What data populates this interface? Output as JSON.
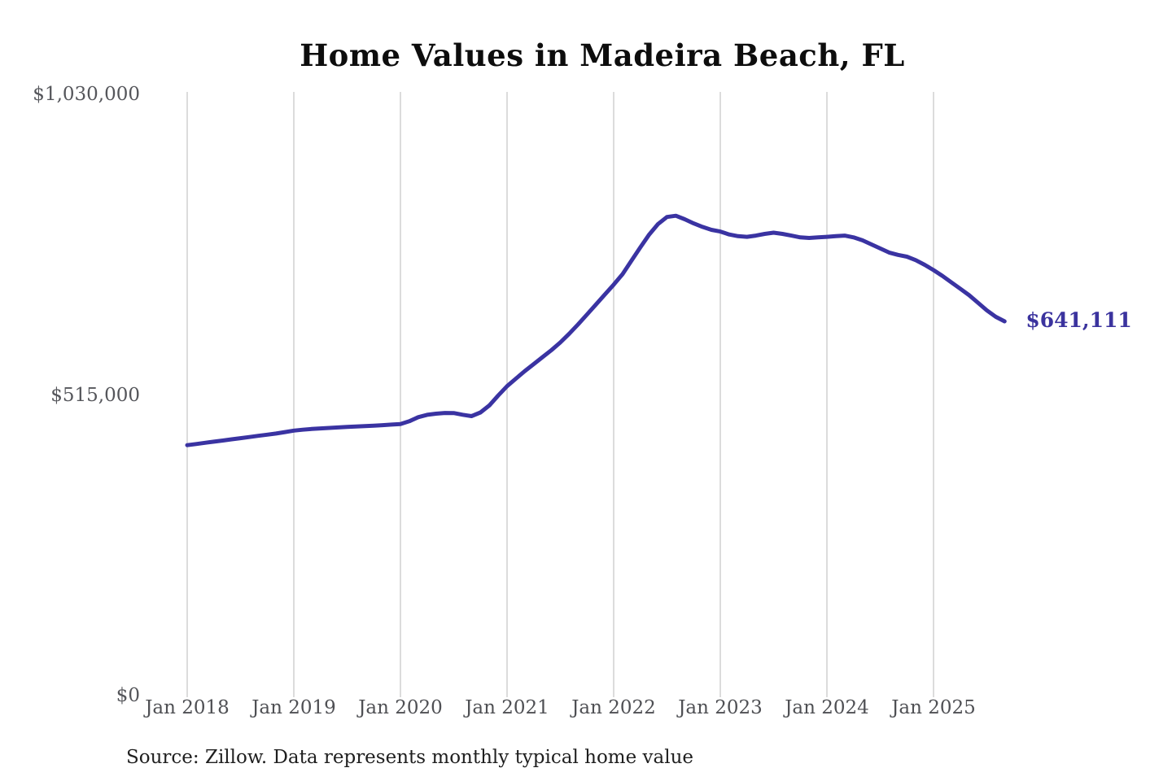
{
  "title": "Home Values in Madeira Beach, FL",
  "source_note": "Source: Zillow. Data represents monthly typical home value",
  "colors": {
    "line": "#3a33a2",
    "annotation": "#3b339e",
    "grid": "#c9c9c9",
    "axis_text": "#55565b",
    "title_text": "#0d0d0d",
    "source_text": "#1f1f1f",
    "background": "#ffffff"
  },
  "chart_data": {
    "type": "line",
    "title": "Home Values in Madeira Beach, FL",
    "xlabel": "",
    "ylabel": "",
    "ylim": [
      0,
      1030000
    ],
    "grid": "vertical-only",
    "legend": "none",
    "x_start_month": "2018-01",
    "x_end_month": "2025-09",
    "y_ticks": [
      {
        "label": "$0",
        "value": 0
      },
      {
        "label": "$515,000",
        "value": 515000
      },
      {
        "label": "$1,030,000",
        "value": 1030000
      }
    ],
    "x_ticks": [
      {
        "label": "Jan 2018",
        "month_index": 0
      },
      {
        "label": "Jan 2019",
        "month_index": 12
      },
      {
        "label": "Jan 2020",
        "month_index": 24
      },
      {
        "label": "Jan 2021",
        "month_index": 36
      },
      {
        "label": "Jan 2022",
        "month_index": 48
      },
      {
        "label": "Jan 2023",
        "month_index": 60
      },
      {
        "label": "Jan 2024",
        "month_index": 72
      },
      {
        "label": "Jan 2025",
        "month_index": 84
      }
    ],
    "series_name": "Typical home value (monthly)",
    "values": [
      429000,
      431000,
      433000,
      435000,
      437000,
      439000,
      441000,
      443000,
      445000,
      447000,
      449000,
      451500,
      454000,
      455500,
      456700,
      457700,
      458600,
      459400,
      460200,
      461000,
      461700,
      462500,
      463300,
      464200,
      465200,
      470000,
      477000,
      481000,
      483000,
      484200,
      484000,
      481200,
      478800,
      485000,
      497000,
      514000,
      530000,
      543000,
      556000,
      568000,
      580000,
      592000,
      605000,
      620000,
      636000,
      653000,
      670000,
      687000,
      704000,
      722000,
      745000,
      768000,
      790000,
      808000,
      820000,
      822000,
      816000,
      809000,
      803000,
      798000,
      795000,
      790000,
      787000,
      786000,
      788000,
      791000,
      793000,
      791000,
      788000,
      785000,
      784000,
      785000,
      786000,
      787000,
      788000,
      785000,
      780000,
      773000,
      766000,
      759000,
      755000,
      752000,
      746000,
      738000,
      729000,
      719000,
      708000,
      697000,
      686000,
      673000,
      660000,
      649000,
      641111
    ],
    "annotation": {
      "text": "$641,111",
      "value": 641111,
      "position": "end-of-line"
    }
  }
}
